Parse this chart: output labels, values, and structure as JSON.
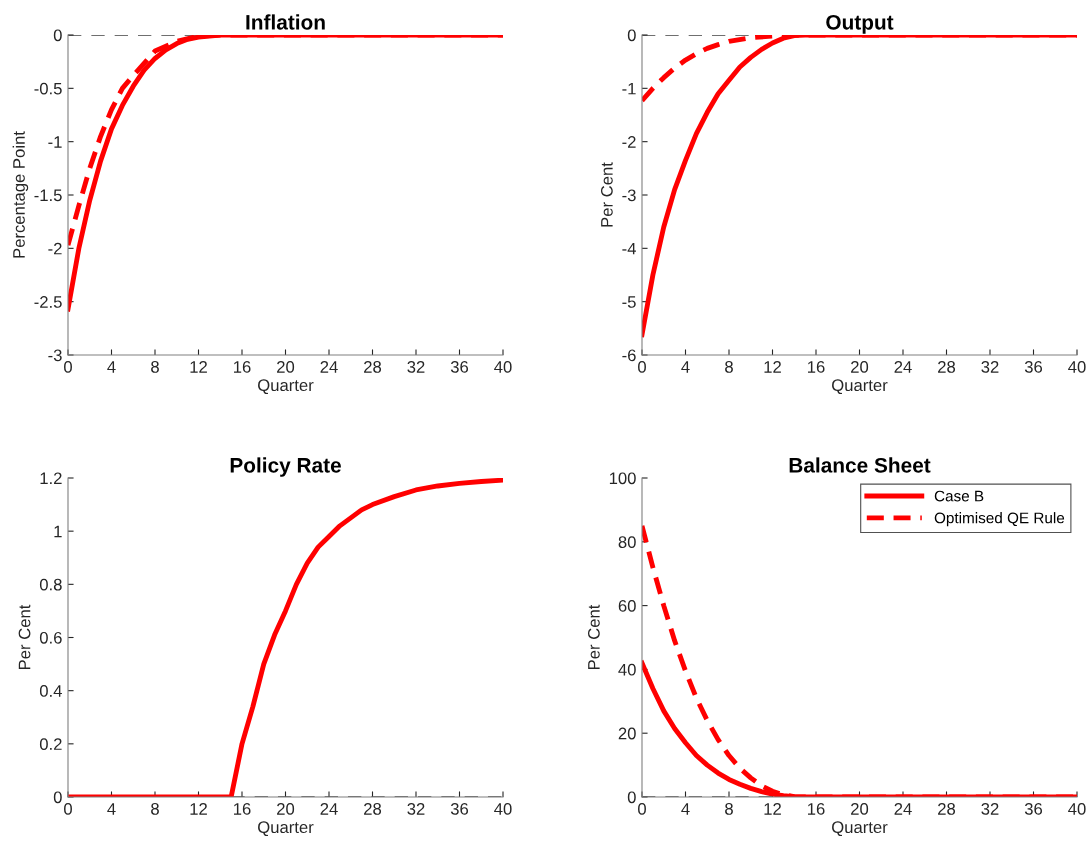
{
  "chart_data": [
    {
      "type": "line",
      "title": "Inflation",
      "xlabel": "Quarter",
      "ylabel": "Percentage Point",
      "xlim": [
        0,
        40
      ],
      "xticks": [
        0,
        4,
        8,
        12,
        16,
        20,
        24,
        28,
        32,
        36,
        40
      ],
      "ylim": [
        -3,
        0
      ],
      "yticks": [
        -3,
        -2.5,
        -2,
        -1.5,
        -1,
        -0.5,
        0
      ],
      "grid": false,
      "legend": false,
      "ref_lines": [
        {
          "axis": "y",
          "value": 0,
          "color": "#404040",
          "line_style": "dashed"
        }
      ],
      "series": [
        {
          "color": "#ff0000",
          "line_style": "solid",
          "x": [
            0,
            1,
            2,
            3,
            4,
            5,
            6,
            7,
            8,
            9,
            10,
            11,
            12,
            13,
            14,
            16,
            20,
            24,
            28,
            32,
            36,
            40
          ],
          "values": [
            -2.57,
            -2.0,
            -1.55,
            -1.18,
            -0.88,
            -0.66,
            -0.48,
            -0.33,
            -0.22,
            -0.14,
            -0.08,
            -0.04,
            -0.02,
            -0.01,
            0,
            0,
            0,
            0,
            0,
            0,
            0,
            0
          ]
        },
        {
          "color": "#ff0000",
          "line_style": "dashed",
          "x": [
            0,
            1,
            2,
            3,
            4,
            5,
            6,
            8,
            10,
            12,
            14,
            16,
            20,
            24,
            28,
            32,
            36,
            40
          ],
          "values": [
            -1.97,
            -1.6,
            -1.25,
            -0.95,
            -0.7,
            -0.5,
            -0.38,
            -0.15,
            -0.06,
            -0.01,
            0,
            0,
            0,
            0,
            0,
            0,
            0,
            0
          ]
        }
      ]
    },
    {
      "type": "line",
      "title": "Output",
      "xlabel": "Quarter",
      "ylabel": "Per Cent",
      "xlim": [
        0,
        40
      ],
      "xticks": [
        0,
        4,
        8,
        12,
        16,
        20,
        24,
        28,
        32,
        36,
        40
      ],
      "ylim": [
        -6,
        0
      ],
      "yticks": [
        -6,
        -5,
        -4,
        -3,
        -2,
        -1,
        0
      ],
      "grid": false,
      "legend": false,
      "ref_lines": [
        {
          "axis": "y",
          "value": 0,
          "color": "#404040",
          "line_style": "dashed"
        }
      ],
      "series": [
        {
          "color": "#ff0000",
          "line_style": "solid",
          "x": [
            0,
            1,
            2,
            3,
            4,
            5,
            6,
            7,
            8,
            9,
            10,
            11,
            12,
            13,
            14,
            15,
            20,
            24,
            28,
            32,
            36,
            40
          ],
          "values": [
            -5.62,
            -4.5,
            -3.6,
            -2.9,
            -2.35,
            -1.85,
            -1.45,
            -1.1,
            -0.85,
            -0.6,
            -0.42,
            -0.27,
            -0.15,
            -0.06,
            -0.01,
            0,
            0,
            0,
            0,
            0,
            0,
            0
          ]
        },
        {
          "color": "#ff0000",
          "line_style": "dashed",
          "x": [
            0,
            1,
            2,
            3,
            4,
            5,
            6,
            7,
            8,
            10,
            12,
            14,
            16,
            20,
            24,
            28,
            32,
            36,
            40
          ],
          "values": [
            -1.23,
            -1.0,
            -0.8,
            -0.62,
            -0.47,
            -0.35,
            -0.25,
            -0.18,
            -0.12,
            -0.05,
            -0.02,
            0,
            0,
            0,
            0,
            0,
            0,
            0,
            0
          ]
        }
      ]
    },
    {
      "type": "line",
      "title": "Policy Rate",
      "xlabel": "Quarter",
      "ylabel": "Per Cent",
      "xlim": [
        0,
        40
      ],
      "xticks": [
        0,
        4,
        8,
        12,
        16,
        20,
        24,
        28,
        32,
        36,
        40
      ],
      "ylim": [
        0,
        1.2
      ],
      "yticks": [
        0,
        0.2,
        0.4,
        0.6,
        0.8,
        1,
        1.2
      ],
      "grid": false,
      "legend": false,
      "ref_lines": [
        {
          "axis": "y",
          "value": 0,
          "color": "#404040",
          "line_style": "dashed"
        }
      ],
      "series": [
        {
          "color": "#ff0000",
          "line_style": "solid",
          "x": [
            0,
            4,
            8,
            12,
            15,
            16,
            17,
            18,
            19,
            20,
            21,
            22,
            23,
            24,
            25,
            26,
            27,
            28,
            30,
            32,
            34,
            36,
            38,
            40
          ],
          "values": [
            0,
            0,
            0,
            0,
            0,
            0.2,
            0.34,
            0.5,
            0.61,
            0.7,
            0.8,
            0.88,
            0.94,
            0.98,
            1.02,
            1.05,
            1.08,
            1.1,
            1.13,
            1.155,
            1.17,
            1.18,
            1.187,
            1.192
          ]
        }
      ]
    },
    {
      "type": "line",
      "title": "Balance Sheet",
      "xlabel": "Quarter",
      "ylabel": "Per Cent",
      "xlim": [
        0,
        40
      ],
      "xticks": [
        0,
        4,
        8,
        12,
        16,
        20,
        24,
        28,
        32,
        36,
        40
      ],
      "ylim": [
        0,
        100
      ],
      "yticks": [
        0,
        20,
        40,
        60,
        80,
        100
      ],
      "grid": false,
      "legend": "top right",
      "ref_lines": [
        {
          "axis": "y",
          "value": 0,
          "color": "#404040",
          "line_style": "dashed"
        }
      ],
      "series": [
        {
          "name": "Case B",
          "color": "#ff0000",
          "line_style": "solid",
          "x": [
            0,
            1,
            2,
            3,
            4,
            5,
            6,
            7,
            8,
            9,
            10,
            11,
            12,
            13,
            14,
            15,
            20,
            24,
            28,
            32,
            36,
            40
          ],
          "values": [
            42,
            34,
            27,
            21.5,
            17,
            13,
            10,
            7.5,
            5.5,
            4,
            2.7,
            1.7,
            0.9,
            0.4,
            0.1,
            0,
            0,
            0,
            0,
            0,
            0,
            0
          ]
        },
        {
          "name": "Optimised QE Rule",
          "color": "#ff0000",
          "line_style": "dashed",
          "x": [
            0,
            1,
            2,
            3,
            4,
            5,
            6,
            7,
            8,
            9,
            10,
            11,
            12,
            13,
            14,
            15,
            20,
            24,
            28,
            32,
            36,
            40
          ],
          "values": [
            85,
            72,
            60,
            49,
            39.5,
            31,
            24,
            18,
            13,
            9,
            6,
            3.5,
            1.8,
            0.7,
            0.1,
            0,
            0,
            0,
            0,
            0,
            0,
            0
          ]
        }
      ]
    }
  ]
}
